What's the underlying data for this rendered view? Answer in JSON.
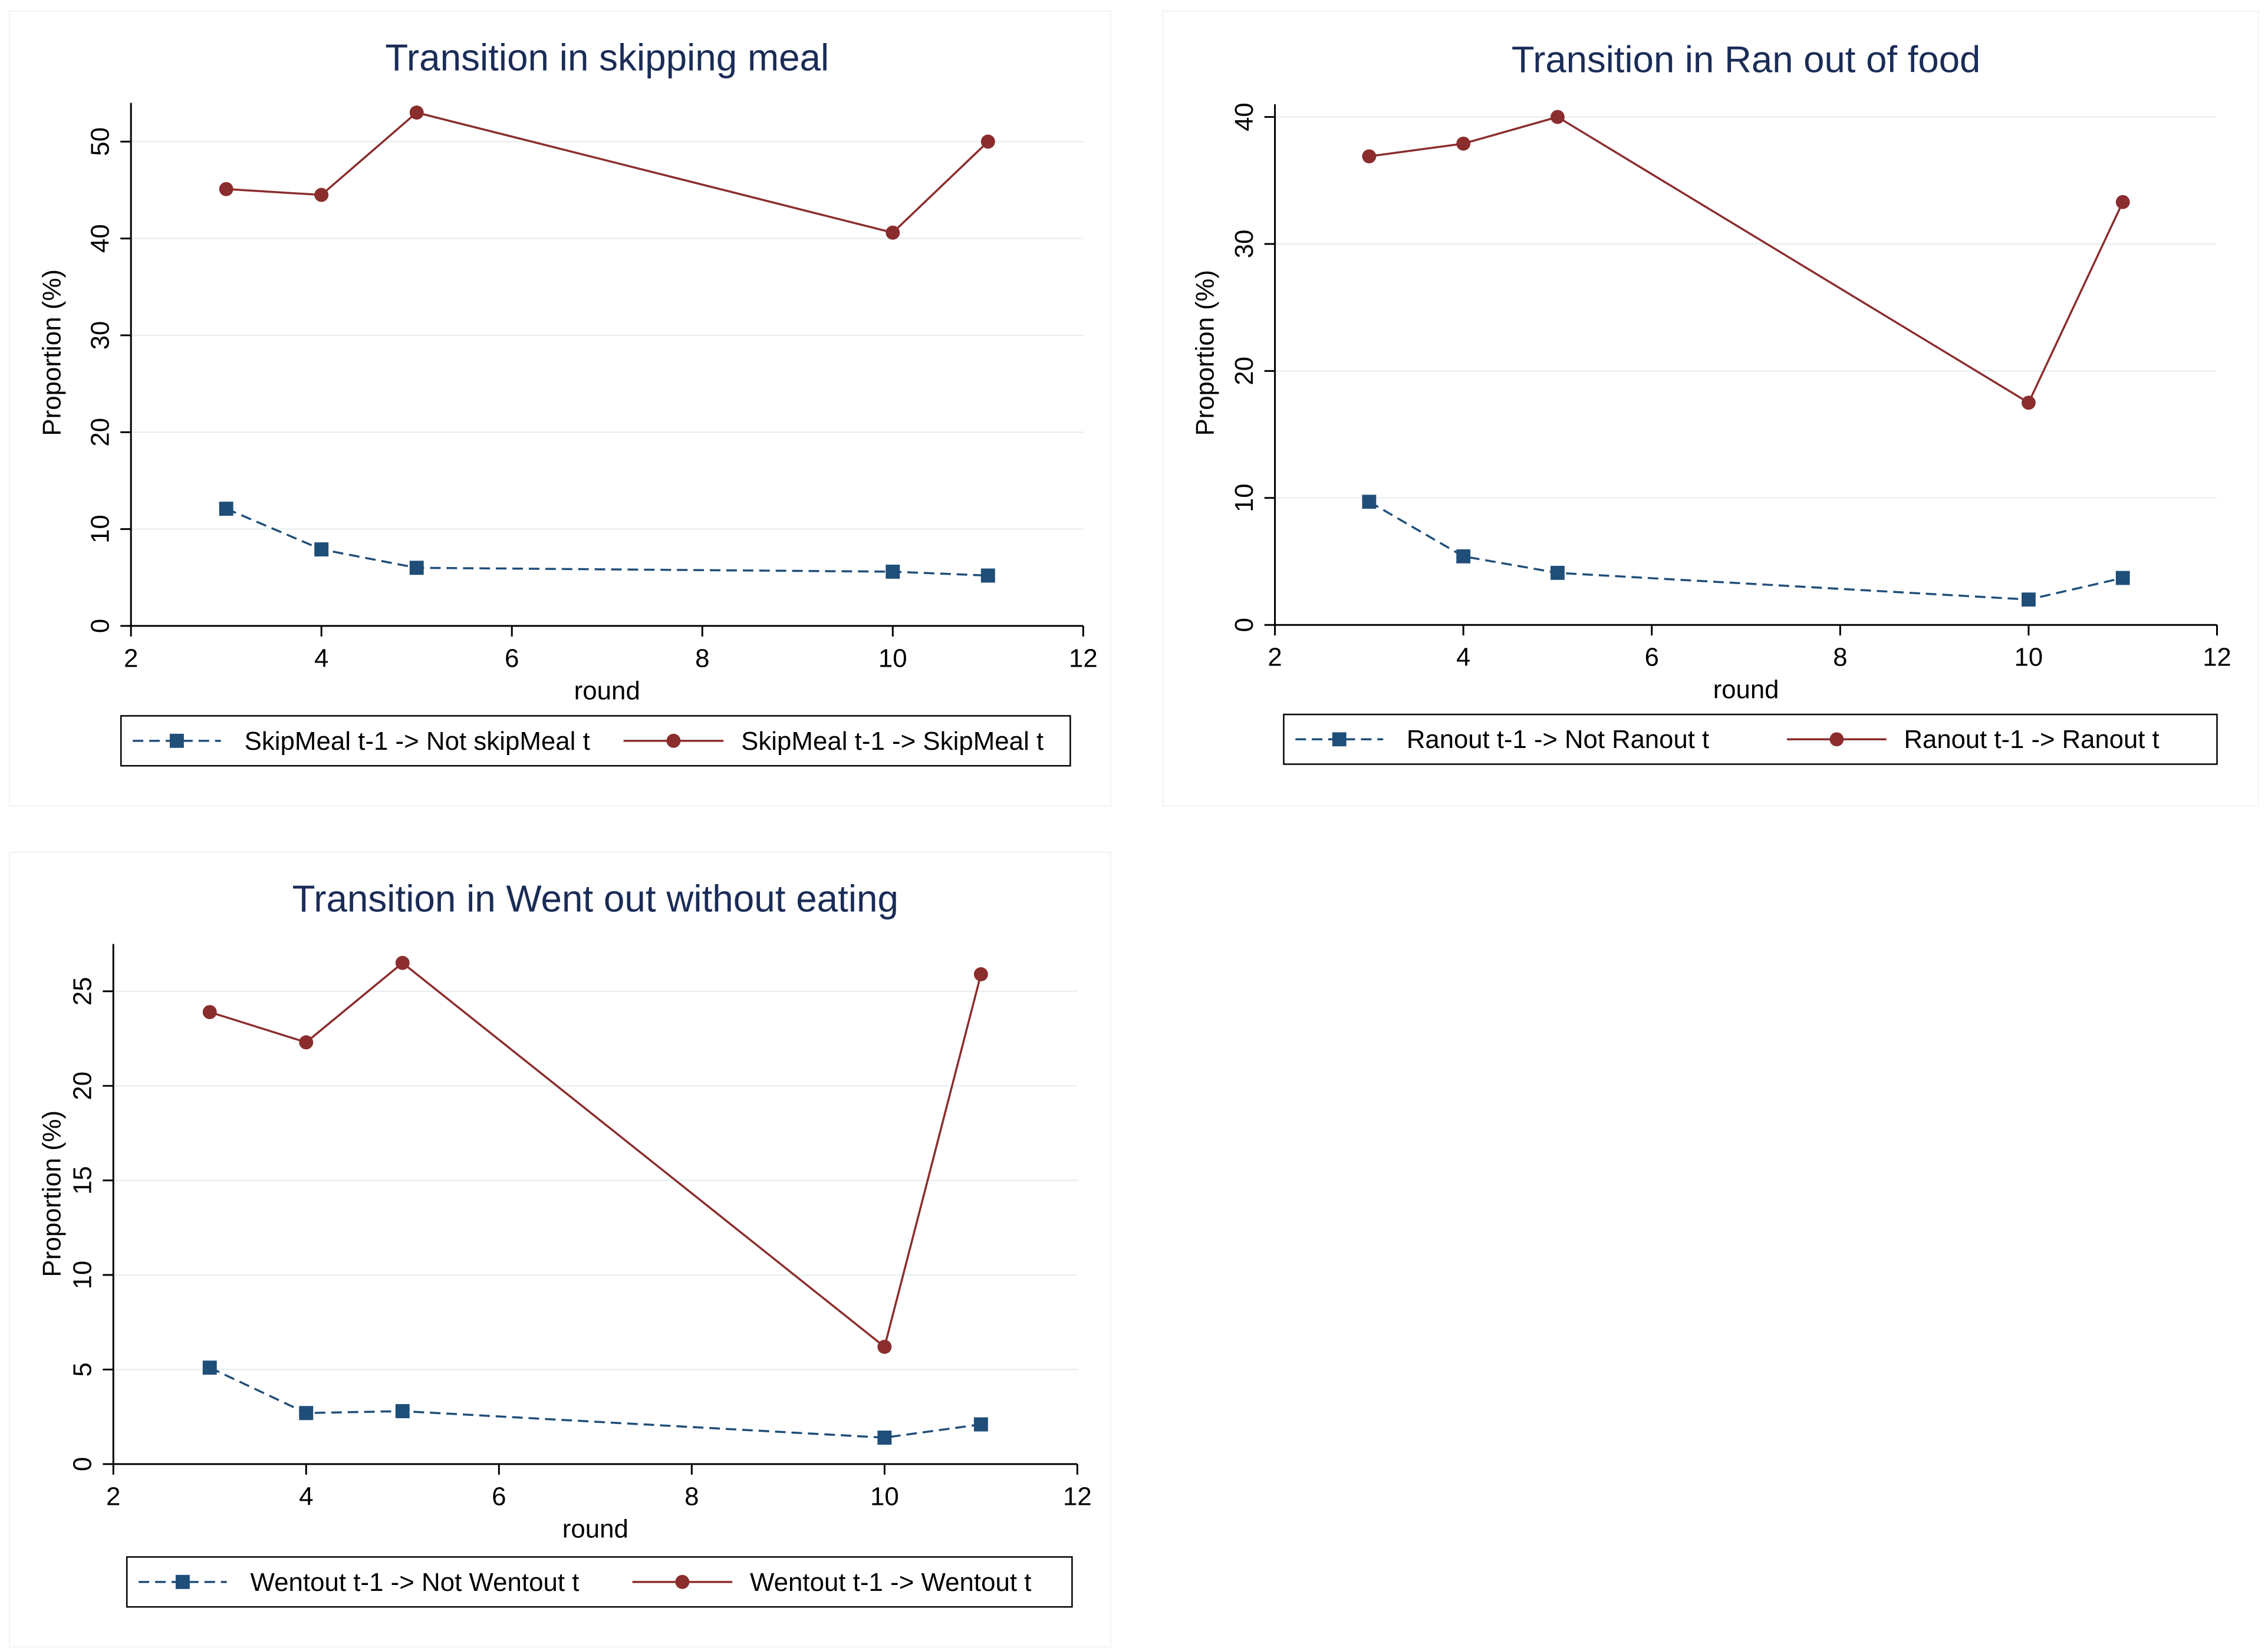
{
  "colors": {
    "series1": "#1f4e79",
    "series2": "#8b2d2d",
    "grid": "#e8efef"
  },
  "chart_data": [
    {
      "type": "line",
      "title": "Transition in skipping meal",
      "xlabel": "round",
      "ylabel": "Proportion (%)",
      "xlim": [
        2,
        12
      ],
      "ylim": [
        0,
        54
      ],
      "xticks": [
        "2",
        "4",
        "6",
        "8",
        "10",
        "12"
      ],
      "yticks": [
        "0",
        "10",
        "20",
        "30",
        "40",
        "50"
      ],
      "x": [
        3,
        4,
        5,
        10,
        11
      ],
      "series": [
        {
          "name": "SkipMeal t-1 -> Not skipMeal t",
          "values": [
            12.1,
            7.9,
            6.0,
            5.6,
            5.2
          ],
          "style": "dashed-square"
        },
        {
          "name": "SkipMeal t-1 -> SkipMeal t",
          "values": [
            45.1,
            44.5,
            53.0,
            40.6,
            50.0
          ],
          "style": "solid-circle"
        }
      ]
    },
    {
      "type": "line",
      "title": "Transition in Ran out of food",
      "xlabel": "round",
      "ylabel": "Proportion (%)",
      "xlim": [
        2,
        12
      ],
      "ylim": [
        0,
        41
      ],
      "xticks": [
        "2",
        "4",
        "6",
        "8",
        "10",
        "12"
      ],
      "yticks": [
        "0",
        "10",
        "20",
        "30",
        "40"
      ],
      "x": [
        3,
        4,
        5,
        10,
        11
      ],
      "series": [
        {
          "name": "Ranout t-1 -> Not Ranout t",
          "values": [
            9.7,
            5.4,
            4.1,
            2.0,
            3.7
          ],
          "style": "dashed-square"
        },
        {
          "name": "Ranout t-1 -> Ranout t",
          "values": [
            36.9,
            37.9,
            40.0,
            17.5,
            33.3
          ],
          "style": "solid-circle"
        }
      ]
    },
    {
      "type": "line",
      "title": "Transition in Went out without eating",
      "xlabel": "round",
      "ylabel": "Proportion (%)",
      "xlim": [
        2,
        12
      ],
      "ylim": [
        0,
        27.5
      ],
      "xticks": [
        "2",
        "4",
        "6",
        "8",
        "10",
        "12"
      ],
      "yticks": [
        "0",
        "5",
        "10",
        "15",
        "20",
        "25"
      ],
      "x": [
        3,
        4,
        5,
        10,
        11
      ],
      "series": [
        {
          "name": "Wentout t-1 -> Not Wentout t",
          "values": [
            5.1,
            2.7,
            2.8,
            1.4,
            2.1
          ],
          "style": "dashed-square"
        },
        {
          "name": "Wentout t-1 -> Wentout t",
          "values": [
            23.9,
            22.3,
            26.5,
            6.2,
            25.9
          ],
          "style": "solid-circle"
        }
      ]
    }
  ]
}
